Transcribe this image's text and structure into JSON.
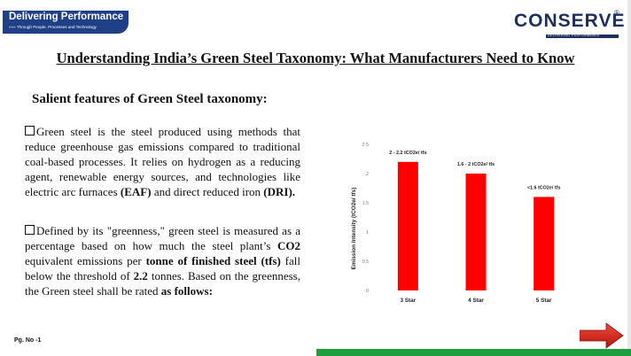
{
  "brand": {
    "title": "Delivering Performance",
    "subtitle": "»»» Through People, Processes and Technology"
  },
  "logo": {
    "name": "CONSERVE",
    "registered": "®",
    "tagline": "DELIVERING PERFORMANCE"
  },
  "slide": {
    "title": "Understanding India’s Green Steel Taxonomy: What Manufacturers Need to Know",
    "section_heading": "Salient features of Green Steel taxonomy:",
    "bullet1": {
      "t1": "Green steel is the steel produced using methods that reduce greenhouse gas emissions compared to traditional coal-based processes. It relies on hydrogen as a reducing agent, renewable energy sources, and technologies like electric arc furnaces ",
      "b1": "(EAF)",
      "t2": " and direct reduced iron ",
      "b2": "(DRI)."
    },
    "bullet2": {
      "t1": "Defined by its \"greenness,\" green steel is measured as a percentage based on how much the steel plant’s ",
      "b1": "CO2",
      "t2": " equivalent emissions per ",
      "b2": "tonne of finished steel (tfs)",
      "t3": " fall below the threshold of ",
      "b3": "2.2",
      "t4": " tonnes. Based on the greenness, the Green steel shall be rated ",
      "b4": "as follows:"
    },
    "page_number": "Pg. No -1"
  },
  "colors": {
    "bar": "#ff0000",
    "brand_blue": "#1f3f86",
    "green_strip": "#1f9e3f",
    "arrow": "#d0201b"
  },
  "icons": {
    "checkbox": "checkbox-icon",
    "next": "next-arrow-icon"
  },
  "chart_data": {
    "type": "bar",
    "categories": [
      "3 Star",
      "4 Star",
      "5 Star"
    ],
    "values": [
      2.2,
      2.0,
      1.6
    ],
    "data_labels": [
      "2 - 2.2 tCO2e/ tfs",
      "1.6 - 2 tCO2e/ tfs",
      "<1.6 tCO2e/ tfs"
    ],
    "title": "",
    "xlabel": "",
    "ylabel": "Emission Intensity (tCO2e/ tfs)",
    "ylim": [
      0,
      2.5
    ],
    "yticks": [
      0,
      0.5,
      1,
      1.5,
      2,
      2.5
    ],
    "ytick_labels": [
      "0",
      "0.5",
      "1",
      "1.5",
      "2",
      "2.5"
    ],
    "grid": false,
    "legend": "none"
  }
}
